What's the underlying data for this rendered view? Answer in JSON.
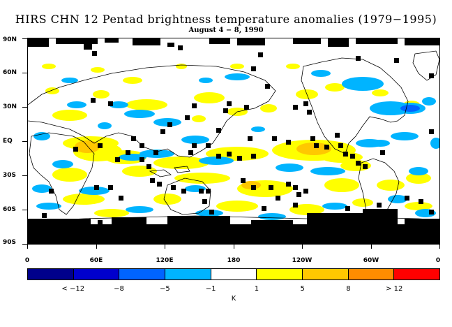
{
  "title": "HIRS CHN 12 Pentad brightness temperature anomalies (1979−1995)",
  "subtitle": "August 4 − 8, 1990",
  "lat_labels": [
    "90N",
    "60N",
    "30N",
    "EQ",
    "30S",
    "60S",
    "90S"
  ],
  "lon_labels": [
    "0",
    "60E",
    "120E",
    "180",
    "120W",
    "60W",
    "0"
  ],
  "colorbar": {
    "colors": [
      "#00008b",
      "#0000cd",
      "#0064ff",
      "#00b4ff",
      "#ffffff",
      "#ffff00",
      "#ffc800",
      "#ff8c00",
      "#ff0000"
    ],
    "labels": [
      "< −12",
      "−8",
      "−5",
      "−1",
      "1",
      "5",
      "8",
      "> 12"
    ],
    "unit": "K"
  },
  "colors": {
    "land_outline": "#000000",
    "missing_data": "#000000",
    "negative_anomaly": "#00b4ff",
    "strong_negative": "#0064ff",
    "positive_anomaly": "#ffff00",
    "strong_positive": "#ffc800"
  }
}
